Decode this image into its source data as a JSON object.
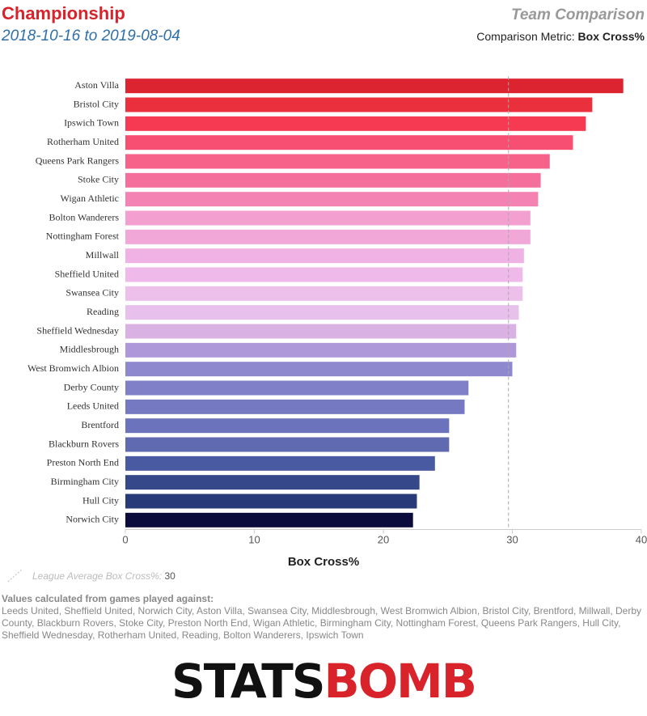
{
  "chart_data": {
    "type": "bar",
    "orientation": "horizontal",
    "title": "Championship",
    "subtitle": "2018-10-16 to 2019-08-04",
    "right_title": "Team Comparison",
    "metric_label": "Comparison Metric:",
    "metric_name": "Box Cross%",
    "x_label": "Box Cross%",
    "categories": [
      "Aston Villa",
      "Bristol City",
      "Ipswich Town",
      "Rotherham United",
      "Queens Park Rangers",
      "Stoke City",
      "Wigan Athletic",
      "Bolton Wanderers",
      "Nottingham Forest",
      "Millwall",
      "Sheffield United",
      "Swansea City",
      "Reading",
      "Sheffield Wednesday",
      "Middlesbrough",
      "West Bromwich Albion",
      "Derby County",
      "Leeds United",
      "Brentford",
      "Blackburn Rovers",
      "Preston North End",
      "Birmingham City",
      "Hull City",
      "Norwich City"
    ],
    "values": [
      38.6,
      36.2,
      35.7,
      34.7,
      32.9,
      32.2,
      32.0,
      31.4,
      31.4,
      30.9,
      30.8,
      30.8,
      30.5,
      30.3,
      30.3,
      30.0,
      26.6,
      26.3,
      25.1,
      25.1,
      24.0,
      22.8,
      22.6,
      22.3
    ],
    "colors": [
      "#dc2430",
      "#ea2f3d",
      "#f53a52",
      "#f64f72",
      "#f6628a",
      "#f56f9c",
      "#f483b4",
      "#f39fd0",
      "#f2a7d9",
      "#f0b2e4",
      "#efb9e9",
      "#edbfeb",
      "#e8c0ec",
      "#d9b1e3",
      "#ae98d9",
      "#8e89cf",
      "#8080c9",
      "#7479c2",
      "#6a73bb",
      "#5f6ab1",
      "#4a5aa2",
      "#35498a",
      "#283b78",
      "#0b0c3c"
    ],
    "xlim": [
      0,
      40
    ],
    "xticks": [
      0,
      10,
      20,
      30,
      40
    ],
    "average": {
      "value": 29.7,
      "label": "30"
    },
    "average_label": "League Average Box Cross%:",
    "note_title": "Values calculated from games played against:",
    "note_text": "Leeds United, Sheffield United, Norwich City, Aston Villa, Swansea City, Middlesbrough, West Bromwich Albion, Bristol City, Brentford, Millwall, Derby County, Blackburn Rovers, Stoke City, Preston North End, Wigan Athletic, Birmingham City, Nottingham Forest, Queens Park Rangers, Hull City, Sheffield Wednesday, Rotherham United, Reading, Bolton Wanderers, Ipswich Town",
    "logo_left": "STATS",
    "logo_right": "BOMB"
  }
}
